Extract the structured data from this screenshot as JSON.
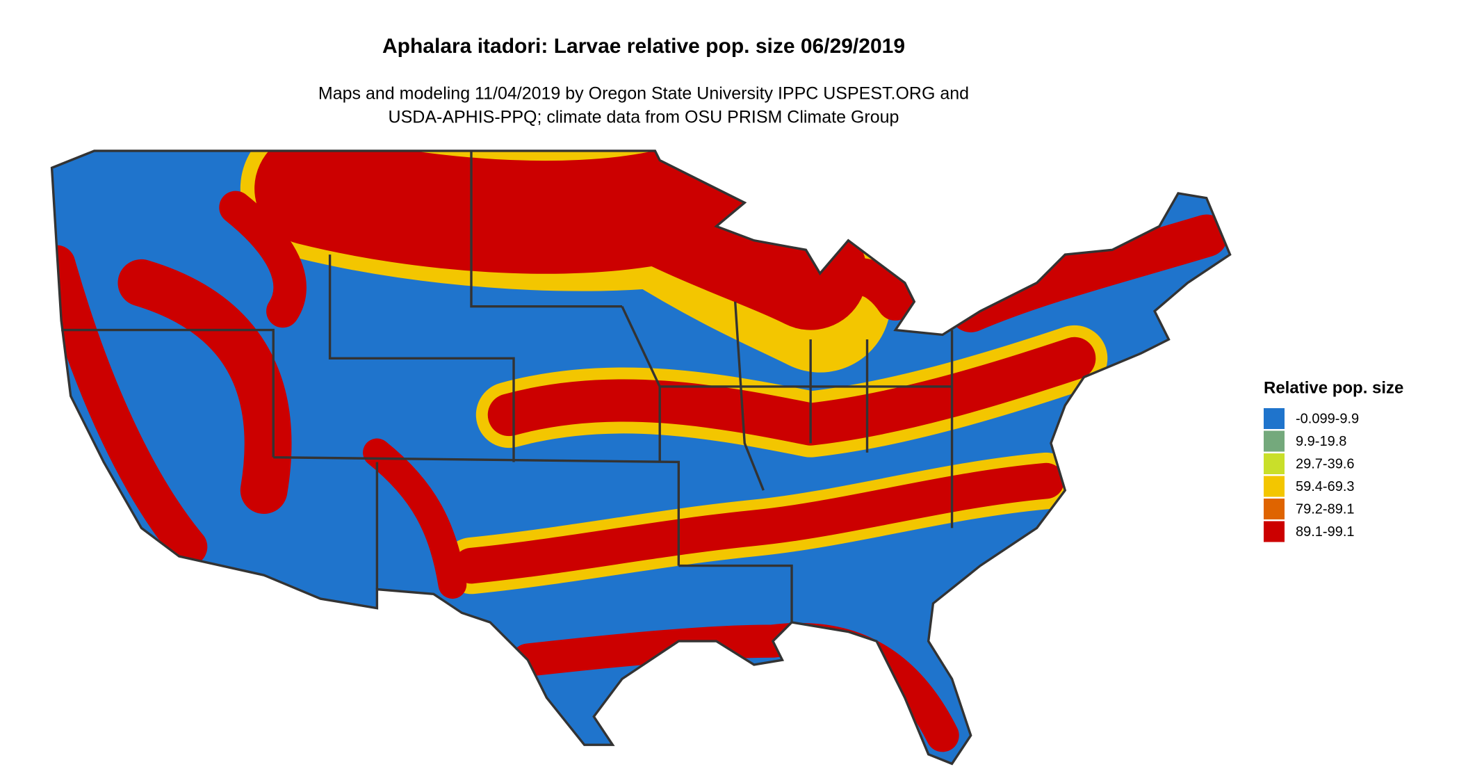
{
  "title": "Aphalara itadori: Larvae relative pop. size 06/29/2019",
  "subtitle": [
    "Maps and modeling 11/04/2019 by Oregon State University IPPC USPEST.ORG and",
    "USDA-APHIS-PPQ; climate data from OSU PRISM Climate Group"
  ],
  "legend": {
    "title": "Relative pop. size",
    "items": [
      {
        "label": "-0.099-9.9",
        "color": "#1f74cc"
      },
      {
        "label": "9.9-19.8",
        "color": "#74a97c"
      },
      {
        "label": "29.7-39.6",
        "color": "#c9df2a"
      },
      {
        "label": "59.4-69.3",
        "color": "#f3c600"
      },
      {
        "label": "79.2-89.1",
        "color": "#df6400"
      },
      {
        "label": "89.1-99.1",
        "color": "#cc0000"
      }
    ]
  }
}
